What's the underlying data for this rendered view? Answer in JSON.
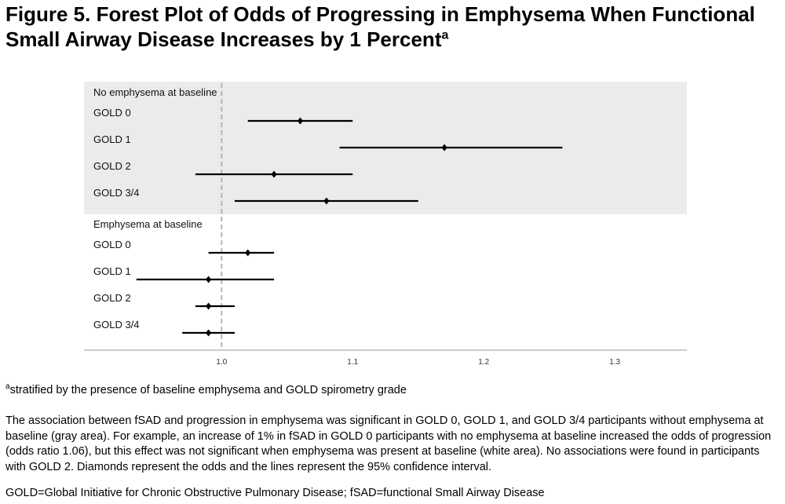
{
  "figure": {
    "title_line1": "Figure 5. Forest Plot of Odds of Progressing in Emphysema When Functional",
    "title_line2": "Small Airway Disease  Increases by 1 Percent",
    "title_superscript": "a"
  },
  "chart_data": {
    "type": "forest",
    "reference_line": 1.0,
    "x_ticks": [
      "1.0",
      "1.1",
      "1.2",
      "1.3"
    ],
    "x_tick_values": [
      1.0,
      1.1,
      1.2,
      1.3
    ],
    "xlim": [
      0.895,
      1.355
    ],
    "grid": false,
    "colors": {
      "shaded_group": "#ebebeb",
      "marker": "#000000",
      "reference_line": "#b5b5b5",
      "axis": "#bbbbbb"
    },
    "groups": [
      {
        "label": "No emphysema at baseline",
        "shaded": true,
        "rows": [
          {
            "label": "GOLD 0",
            "estimate": 1.06,
            "lower": 1.02,
            "upper": 1.1
          },
          {
            "label": "GOLD 1",
            "estimate": 1.17,
            "lower": 1.09,
            "upper": 1.26
          },
          {
            "label": "GOLD 2",
            "estimate": 1.04,
            "lower": 0.98,
            "upper": 1.1
          },
          {
            "label": "GOLD 3/4",
            "estimate": 1.08,
            "lower": 1.01,
            "upper": 1.15
          }
        ]
      },
      {
        "label": "Emphysema at baseline",
        "shaded": false,
        "rows": [
          {
            "label": "GOLD 0",
            "estimate": 1.02,
            "lower": 0.99,
            "upper": 1.04
          },
          {
            "label": "GOLD 1",
            "estimate": 0.99,
            "lower": 0.935,
            "upper": 1.04
          },
          {
            "label": "GOLD 2",
            "estimate": 0.99,
            "lower": 0.98,
            "upper": 1.01
          },
          {
            "label": "GOLD 3/4",
            "estimate": 0.99,
            "lower": 0.97,
            "upper": 1.01
          }
        ]
      }
    ]
  },
  "footnotes": {
    "stratified_sup": "a",
    "stratified": "stratified by the presence of baseline emphysema and GOLD spirometry grade",
    "description": "The association between fSAD and progression in emphysema was significant in GOLD 0, GOLD 1, and GOLD 3/4 participants without emphysema at baseline (gray area). For example, an increase of 1% in fSAD in GOLD 0 participants with no emphysema at baseline increased the odds of progression (odds ratio 1.06), but this effect was not significant when emphysema was present at baseline (white area). No associations were found in participants with GOLD 2. Diamonds represent the odds and the lines represent the 95% confidence interval.",
    "abbreviations": "GOLD=Global Initiative for Chronic Obstructive Pulmonary Disease; fSAD=functional Small Airway Disease"
  }
}
